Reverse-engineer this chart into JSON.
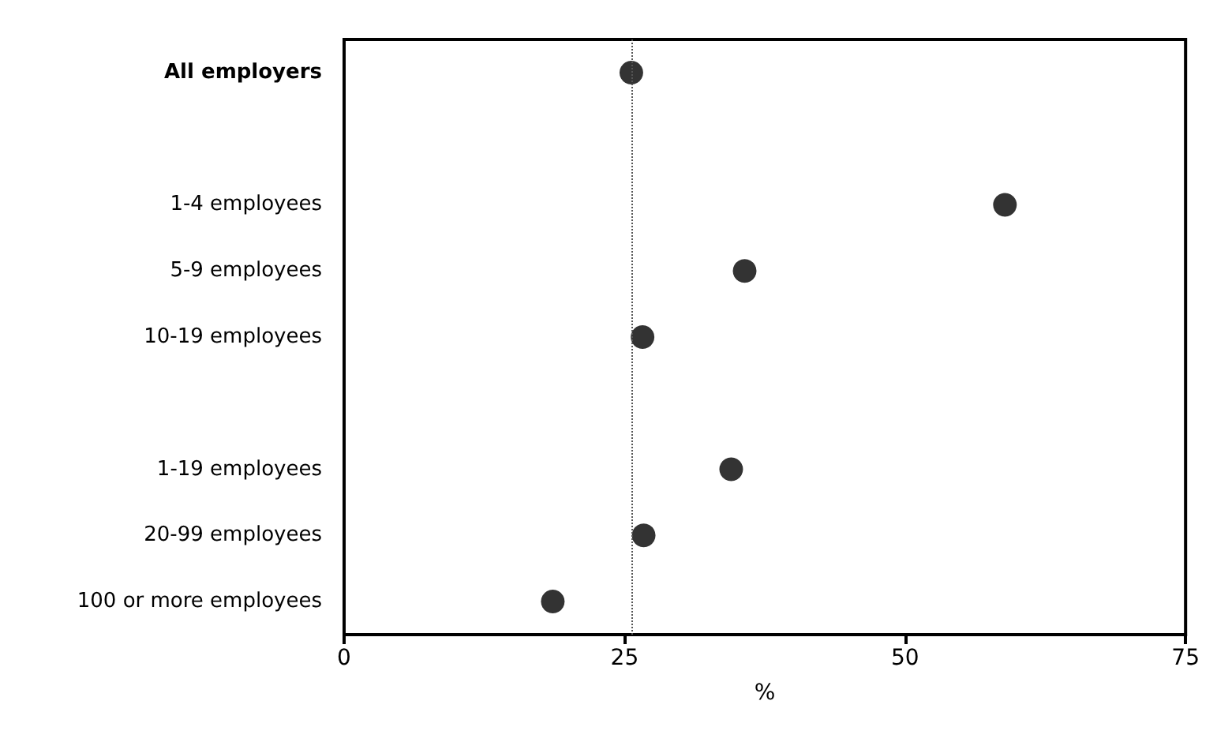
{
  "chart_data": {
    "type": "scatter",
    "orientation": "horizontal",
    "xlabel": "%",
    "categories": [
      "All employers",
      null,
      "1-4 employees",
      "5-9 employees",
      "10-19 employees",
      null,
      "1-19 employees",
      "20-99 employees",
      "100 or more employees"
    ],
    "values": [
      25.6,
      null,
      58.9,
      35.7,
      26.6,
      null,
      34.5,
      26.7,
      18.6
    ],
    "color": "#000000",
    "marker": "circle",
    "grid": false,
    "xlim": [
      0,
      75
    ],
    "xticks": [
      0,
      25,
      50,
      75
    ],
    "ref_lines": [
      {
        "axis": "x",
        "value": 25.6,
        "line_style": "dotted",
        "color": "#555555"
      }
    ]
  }
}
